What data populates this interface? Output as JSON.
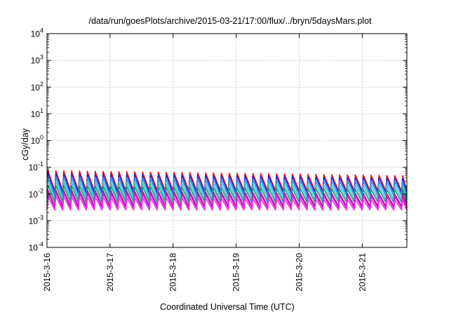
{
  "chart_data": {
    "type": "line",
    "title": "/data/run/goesPlots/archive/2015-03-21/17:00/flux/../bryn/5daysMars.plot",
    "xlabel": "Coordinated Universal Time (UTC)",
    "ylabel": "cGy/day",
    "y_scale": "log",
    "ylim": [
      0.0001,
      10000
    ],
    "xlim": [
      "2015-03-16 00:00",
      "2015-03-21 17:00"
    ],
    "y_ticks": [
      {
        "value": 0.0001,
        "base": "10",
        "exp": "-4"
      },
      {
        "value": 0.001,
        "base": "10",
        "exp": "-3"
      },
      {
        "value": 0.01,
        "base": "10",
        "exp": "-2"
      },
      {
        "value": 0.1,
        "base": "10",
        "exp": "-1"
      },
      {
        "value": 1,
        "base": "10",
        "exp": "0"
      },
      {
        "value": 10,
        "base": "10",
        "exp": "1"
      },
      {
        "value": 100,
        "base": "10",
        "exp": "2"
      },
      {
        "value": 1000,
        "base": "10",
        "exp": "3"
      },
      {
        "value": 10000,
        "base": "10",
        "exp": "4"
      }
    ],
    "x_ticks": [
      "2015-3-16",
      "2015-3-17",
      "2015-3-18",
      "2015-3-19",
      "2015-3-20",
      "2015-3-21"
    ],
    "grid": true,
    "legend": "none",
    "sawtooth_period_hours": 3,
    "series": [
      {
        "color": "#e8151b",
        "peak": 0.075,
        "trough": 0.013
      },
      {
        "color": "#2a2bd3",
        "peak": 0.06,
        "trough": 0.011
      },
      {
        "color": "#2f8fe6",
        "peak": 0.043,
        "trough": 0.0085
      },
      {
        "color": "#36c6d4",
        "peak": 0.03,
        "trough": 0.0062
      },
      {
        "color": "#0b9c7c",
        "peak": 0.021,
        "trough": 0.0048
      },
      {
        "color": "#9a1d9c",
        "peak": 0.014,
        "trough": 0.0035
      },
      {
        "color": "#d21ed0",
        "peak": 0.011,
        "trough": 0.003
      },
      {
        "color": "#ff2bf3",
        "peak": 0.008,
        "trough": 0.0025
      }
    ]
  }
}
